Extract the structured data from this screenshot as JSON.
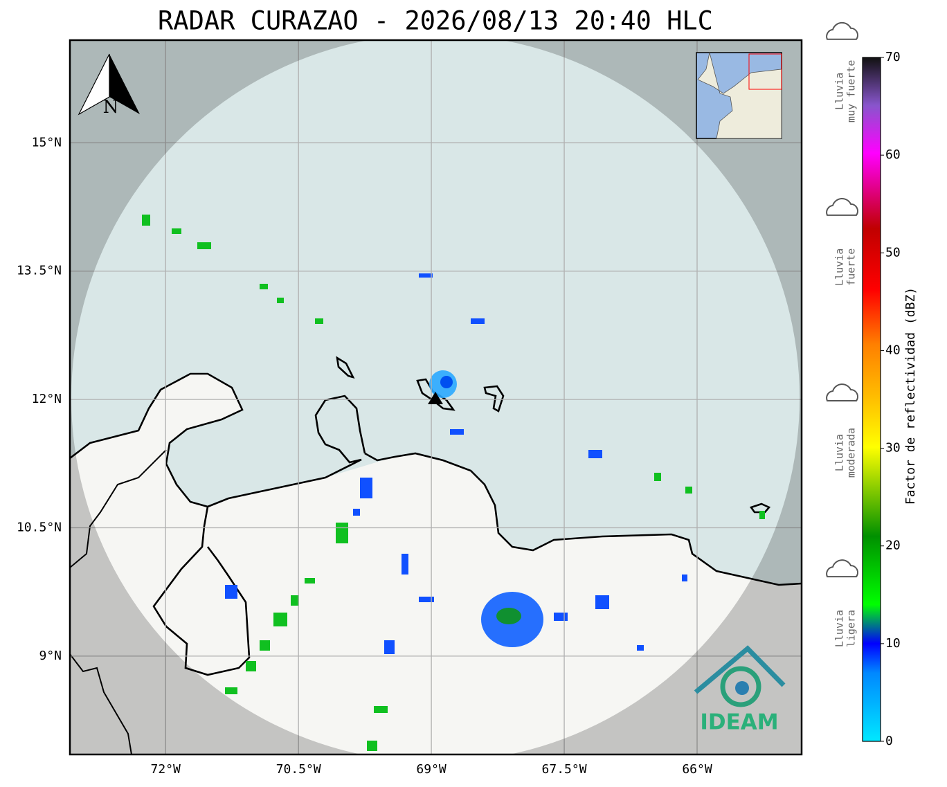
{
  "chart_data": {
    "type": "map",
    "title": "RADAR CURAZAO - 2026/08/13 20:40 HLC",
    "xlim": [
      -73.08,
      -64.82
    ],
    "ylim": [
      7.85,
      16.2
    ],
    "xticks": [
      {
        "value": -72,
        "label": "72°W"
      },
      {
        "value": -70.5,
        "label": "70.5°W"
      },
      {
        "value": -69,
        "label": "69°W"
      },
      {
        "value": -67.5,
        "label": "67.5°W"
      },
      {
        "value": -66,
        "label": "66°W"
      }
    ],
    "yticks": [
      {
        "value": 9,
        "label": "9°N"
      },
      {
        "value": 10.5,
        "label": "10.5°N"
      },
      {
        "value": 12,
        "label": "12°N"
      },
      {
        "value": 13.5,
        "label": "13.5°N"
      },
      {
        "value": 15,
        "label": "15°N"
      }
    ],
    "grid": true,
    "north_label": "N",
    "logo": "IDEAM",
    "colorbar": {
      "label": "Factor de reflectividad (dBZ)",
      "ylim": [
        0,
        70
      ],
      "yticks": [
        0,
        10,
        20,
        30,
        40,
        50,
        60,
        70
      ]
    },
    "intensity_labels": [
      {
        "lines": [
          "Lluvia",
          "muy fuerte"
        ],
        "value": 63
      },
      {
        "lines": [
          "Lluvia",
          "fuerte"
        ],
        "value": 45
      },
      {
        "lines": [
          "Lluvia",
          "moderada"
        ],
        "value": 26
      },
      {
        "lines": [
          "Lluvia",
          "ligera"
        ],
        "value": 8
      }
    ]
  }
}
